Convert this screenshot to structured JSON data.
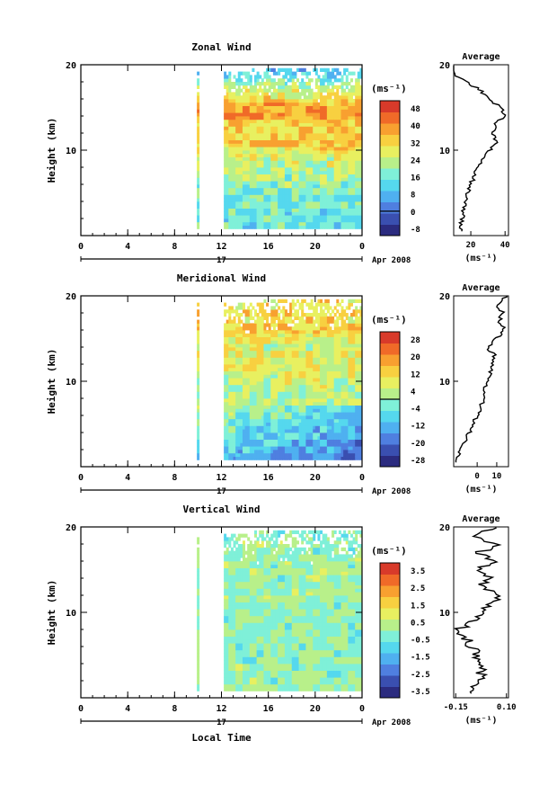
{
  "date_label": "Apr 2008",
  "day_label": "17",
  "xlabel": "Local Time",
  "x_ticks": [
    "0",
    "4",
    "8",
    "12",
    "16",
    "20",
    "0"
  ],
  "unit_label": "(ms⁻¹)",
  "panel_ylabel": "Height (km)",
  "avg_title": "Average",
  "avg_xlabel": "(ms⁻¹)",
  "chart_data": [
    {
      "type": "heatmap",
      "title": "Zonal Wind",
      "ylabel": "Height (km)",
      "xlabel": "",
      "xlim": [
        0,
        24
      ],
      "ylim": [
        0,
        20
      ],
      "y_ticks": [
        "10",
        "20"
      ],
      "colorbar_ticks": [
        "48",
        "40",
        "32",
        "24",
        "16",
        "8",
        "0",
        "-8"
      ],
      "colorbar_range": [
        -12,
        52
      ],
      "columns": [
        {
          "from": 9.9,
          "to": 10.1
        },
        {
          "from": 12.2,
          "to": 24
        }
      ],
      "profile": [
        {
          "h": 1,
          "v": 14
        },
        {
          "h": 3,
          "v": 16
        },
        {
          "h": 5,
          "v": 18
        },
        {
          "h": 7,
          "v": 22
        },
        {
          "h": 9,
          "v": 27
        },
        {
          "h": 11,
          "v": 35
        },
        {
          "h": 12,
          "v": 33
        },
        {
          "h": 13,
          "v": 34
        },
        {
          "h": 14,
          "v": 40
        },
        {
          "h": 15,
          "v": 38
        },
        {
          "h": 16,
          "v": 30
        },
        {
          "h": 17,
          "v": 26
        },
        {
          "h": 18,
          "v": 17
        },
        {
          "h": 19,
          "v": 10
        },
        {
          "h": 20,
          "v": 8
        }
      ]
    },
    {
      "type": "heatmap",
      "title": "Meridional Wind",
      "ylabel": "Height (km)",
      "xlabel": "",
      "xlim": [
        0,
        24
      ],
      "ylim": [
        0,
        20
      ],
      "y_ticks": [
        "10",
        "20"
      ],
      "colorbar_ticks": [
        "28",
        "20",
        "12",
        "4",
        "-4",
        "-12",
        "-20",
        "-28"
      ],
      "colorbar_range": [
        -32,
        32
      ],
      "columns": [
        {
          "from": 9.9,
          "to": 10.1
        },
        {
          "from": 12.2,
          "to": 24
        }
      ],
      "profile": [
        {
          "h": 1,
          "v": -10
        },
        {
          "h": 3,
          "v": -6
        },
        {
          "h": 5,
          "v": -2
        },
        {
          "h": 7,
          "v": 2
        },
        {
          "h": 9,
          "v": 4
        },
        {
          "h": 11,
          "v": 7
        },
        {
          "h": 13,
          "v": 9
        },
        {
          "h": 14,
          "v": 5
        },
        {
          "h": 15,
          "v": 10
        },
        {
          "h": 16,
          "v": 14
        },
        {
          "h": 17,
          "v": 11
        },
        {
          "h": 18,
          "v": 13
        },
        {
          "h": 19,
          "v": 10
        },
        {
          "h": 20,
          "v": 15
        }
      ]
    },
    {
      "type": "heatmap",
      "title": "Vertical Wind",
      "ylabel": "Height (km)",
      "xlabel": "Local Time",
      "xlim": [
        0,
        24
      ],
      "ylim": [
        0,
        20
      ],
      "y_ticks": [
        "10",
        "20"
      ],
      "colorbar_ticks": [
        "3.5",
        "2.5",
        "1.5",
        "0.5",
        "-0.5",
        "-1.5",
        "-2.5",
        "-3.5"
      ],
      "colorbar_range": [
        -4,
        4
      ],
      "columns": [
        {
          "from": 9.9,
          "to": 10.1
        },
        {
          "from": 12.2,
          "to": 24
        }
      ],
      "profile": [
        {
          "h": 1,
          "v": -0.05
        },
        {
          "h": 3,
          "v": -0.02
        },
        {
          "h": 5,
          "v": -0.04
        },
        {
          "h": 7,
          "v": -0.1
        },
        {
          "h": 8,
          "v": -0.13
        },
        {
          "h": 9,
          "v": -0.06
        },
        {
          "h": 10,
          "v": -0.02
        },
        {
          "h": 11,
          "v": 0.02
        },
        {
          "h": 12,
          "v": 0.08
        },
        {
          "h": 13,
          "v": -0.04
        },
        {
          "h": 14,
          "v": 0.03
        },
        {
          "h": 15,
          "v": -0.06
        },
        {
          "h": 16,
          "v": 0.04
        },
        {
          "h": 17,
          "v": -0.03
        },
        {
          "h": 18,
          "v": 0.05
        },
        {
          "h": 19,
          "v": -0.08
        },
        {
          "h": 20,
          "v": 0.09
        }
      ]
    }
  ],
  "averages": [
    {
      "x_ticks": [
        "20",
        "40"
      ],
      "xlim": [
        10,
        42
      ]
    },
    {
      "x_ticks": [
        "0",
        "10"
      ],
      "xlim": [
        -12,
        16
      ]
    },
    {
      "x_ticks": [
        "-0.15",
        "0.10"
      ],
      "xlim": [
        -0.16,
        0.11
      ]
    }
  ]
}
